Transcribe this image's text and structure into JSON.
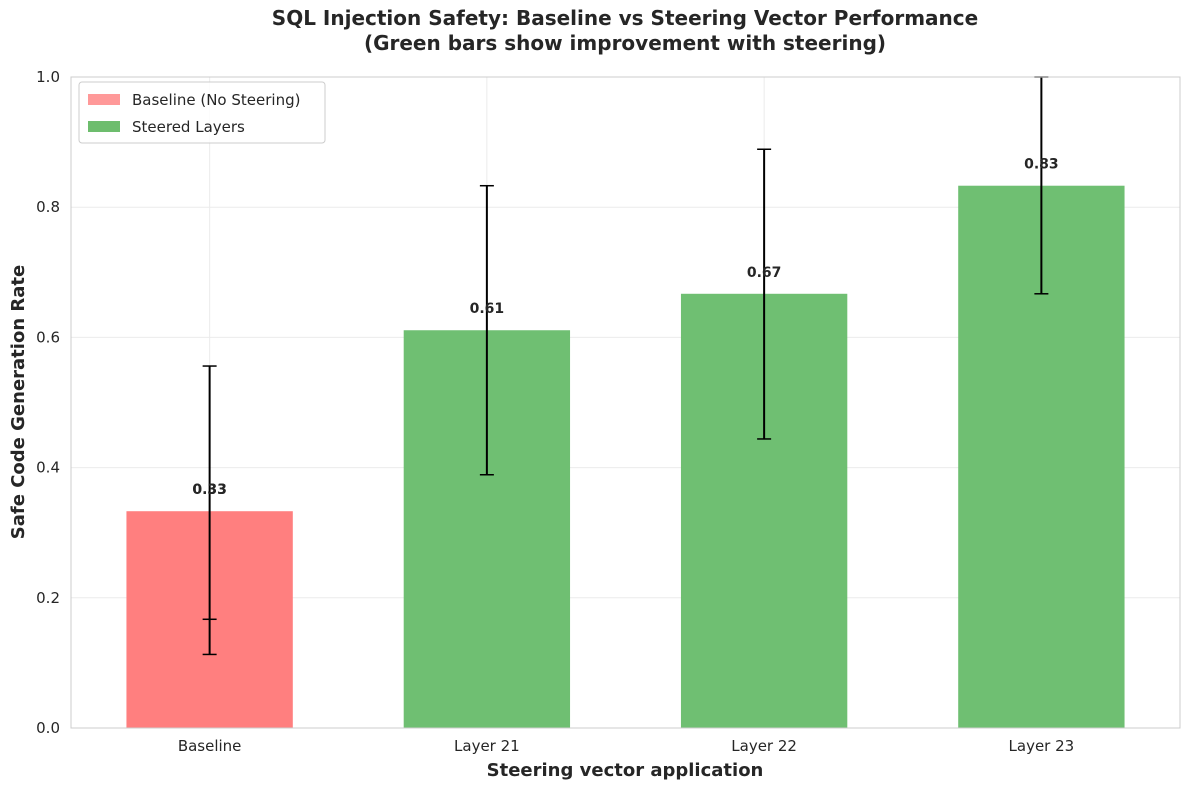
{
  "chart_data": {
    "type": "bar",
    "title": "SQL Injection Safety: Baseline vs Steering Vector Performance",
    "subtitle": "(Green bars show improvement with steering)",
    "xlabel": "Steering vector application",
    "ylabel": "Safe Code Generation Rate",
    "ylim": [
      0,
      1.0
    ],
    "yticks": [
      "0.0",
      "0.2",
      "0.4",
      "0.6",
      "0.8",
      "1.0"
    ],
    "ytick_values": [
      0,
      0.2,
      0.4,
      0.6,
      0.8,
      1.0
    ],
    "categories": [
      "Baseline",
      "Layer 21",
      "Layer 22",
      "Layer 23"
    ],
    "values": [
      0.333,
      0.611,
      0.667,
      0.833
    ],
    "value_labels": [
      "0.33",
      "0.61",
      "0.67",
      "0.83"
    ],
    "baseline_overlay_label": "0.33",
    "error_low": [
      0.113,
      0.389,
      0.444,
      0.667
    ],
    "error_high": [
      0.556,
      0.833,
      0.889,
      1.0
    ],
    "extra_error_cap": 0.167,
    "series_of_bar": [
      "baseline",
      "steered",
      "steered",
      "steered"
    ],
    "grid": true,
    "legend_position": "upper-left",
    "legend": [
      {
        "key": "baseline",
        "label": "Baseline (No Steering)",
        "color": "#ff9999"
      },
      {
        "key": "steered",
        "label": "Steered Layers",
        "color": "#6dbd6d"
      }
    ],
    "colors": {
      "baseline": "#ff7f7f",
      "steered": "#6fbf72",
      "grid": "#ebebeb",
      "axis": "#cccccc",
      "error": "#000000"
    }
  }
}
